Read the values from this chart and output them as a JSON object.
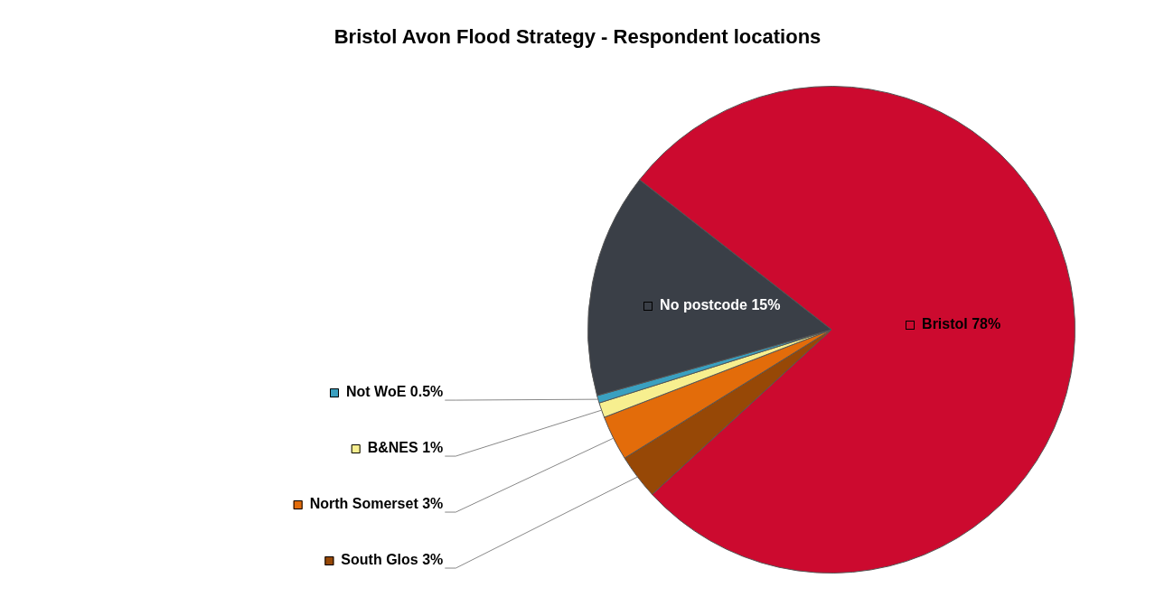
{
  "chart_data": {
    "type": "pie",
    "title": "Bristol Avon Flood Strategy - Respondent locations",
    "categories": [
      "Bristol",
      "South Glos",
      "North Somerset",
      "B&NES",
      "Not WoE",
      "No postcode"
    ],
    "values": [
      78,
      3,
      3,
      1,
      0.5,
      15
    ],
    "value_labels": [
      "78%",
      "3%",
      "3%",
      "1%",
      "0.5%",
      "15%"
    ],
    "colors": [
      "#cc0a2f",
      "#974806",
      "#e36c0a",
      "#f7ef8f",
      "#3aa0c0",
      "#3a3f47"
    ],
    "legend": "left"
  }
}
